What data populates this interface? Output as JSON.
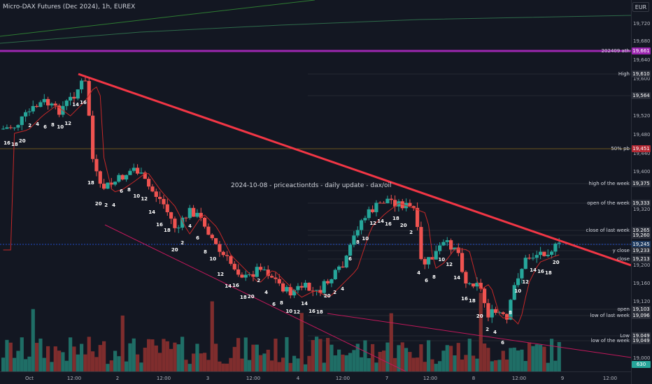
{
  "chart": {
    "title": "Micro-DAX Futures (Dec 2024), 1h, EUREX",
    "currency": "EUR",
    "note": "2024-10-08 - priceactiontds - daily update - dax/oil",
    "x_labels": [
      "Oct",
      "12:00",
      "2",
      "12:00",
      "3",
      "12:00",
      "4",
      "12:00",
      "7",
      "12:00",
      "8",
      "12:00",
      "9",
      "12:00"
    ],
    "y_ticks": [
      "19,720",
      "19,680",
      "19,640",
      "19,600",
      "19,520",
      "19,480",
      "19,440",
      "19,400",
      "19,320",
      "19,200",
      "19,160",
      "19,120",
      "19,000"
    ],
    "level_labels": [
      {
        "text": "202409 ath",
        "value": "19,661",
        "color": "#9c27b0"
      },
      {
        "text": "High",
        "value": "19,610",
        "color": "#2a2e39"
      },
      {
        "text": "",
        "value": "19,564",
        "color": "#2a2e39"
      },
      {
        "text": "50% pb",
        "value": "19,451",
        "color": "#b22833"
      },
      {
        "text": "high of the week",
        "value": "19,375",
        "color": "#2a2e39"
      },
      {
        "text": "open of the week",
        "value": "19,333",
        "color": "#2a2e39"
      },
      {
        "text": "close of last week",
        "value": "19,265",
        "color": "#2a2e39"
      },
      {
        "text": "",
        "value": "19,260",
        "color": "#2a2e39"
      },
      {
        "text": "",
        "value": "19,245",
        "color": "#1e3a5f"
      },
      {
        "text": "y close",
        "value": "19,233",
        "color": "#2a2e39"
      },
      {
        "text": "close",
        "value": "19,213",
        "color": "#2a2e39"
      },
      {
        "text": "open",
        "value": "19,103",
        "color": "#2a2e39"
      },
      {
        "text": "low of last week",
        "value": "19,096",
        "color": "#2a2e39"
      },
      {
        "text": "Low",
        "value": "19,049",
        "color": "#2a2e39"
      },
      {
        "text": "low of the week",
        "value": "19,049",
        "color": "#2a2e39"
      },
      {
        "text": "",
        "value": "630",
        "color": "#26a69a"
      }
    ],
    "candle_labels": [
      {
        "t": "16"
      },
      {
        "t": "18"
      },
      {
        "t": "20"
      },
      {
        "t": "2"
      },
      {
        "t": "4"
      },
      {
        "t": "6"
      },
      {
        "t": "8"
      },
      {
        "t": "10"
      },
      {
        "t": "12"
      },
      {
        "t": "14"
      },
      {
        "t": "16"
      },
      {
        "t": "18"
      },
      {
        "t": "20"
      },
      {
        "t": "2"
      },
      {
        "t": "4"
      },
      {
        "t": "6"
      },
      {
        "t": "8"
      },
      {
        "t": "10"
      },
      {
        "t": "12"
      },
      {
        "t": "14"
      },
      {
        "t": "16"
      },
      {
        "t": "18"
      },
      {
        "t": "20"
      },
      {
        "t": "2"
      },
      {
        "t": "4"
      },
      {
        "t": "6"
      },
      {
        "t": "8"
      },
      {
        "t": "10"
      },
      {
        "t": "12"
      },
      {
        "t": "14"
      },
      {
        "t": "16"
      },
      {
        "t": "18"
      },
      {
        "t": "20"
      },
      {
        "t": "2"
      },
      {
        "t": "4"
      },
      {
        "t": "6"
      },
      {
        "t": "8"
      },
      {
        "t": "10"
      },
      {
        "t": "12"
      },
      {
        "t": "14"
      },
      {
        "t": "16"
      },
      {
        "t": "18"
      },
      {
        "t": "20"
      },
      {
        "t": "2"
      },
      {
        "t": "4"
      },
      {
        "t": "6"
      },
      {
        "t": "8"
      },
      {
        "t": "10"
      },
      {
        "t": "12"
      },
      {
        "t": "14"
      },
      {
        "t": "16"
      },
      {
        "t": "18"
      },
      {
        "t": "20"
      },
      {
        "t": "2"
      },
      {
        "t": "4"
      },
      {
        "t": "6"
      },
      {
        "t": "8"
      },
      {
        "t": "10"
      },
      {
        "t": "12"
      },
      {
        "t": "14"
      },
      {
        "t": "16"
      },
      {
        "t": "18"
      },
      {
        "t": "20"
      },
      {
        "t": "2"
      },
      {
        "t": "4"
      },
      {
        "t": "6"
      },
      {
        "t": "8"
      },
      {
        "t": "10"
      },
      {
        "t": "12"
      },
      {
        "t": "14"
      },
      {
        "t": "16"
      },
      {
        "t": "18"
      },
      {
        "t": "20"
      }
    ]
  }
}
